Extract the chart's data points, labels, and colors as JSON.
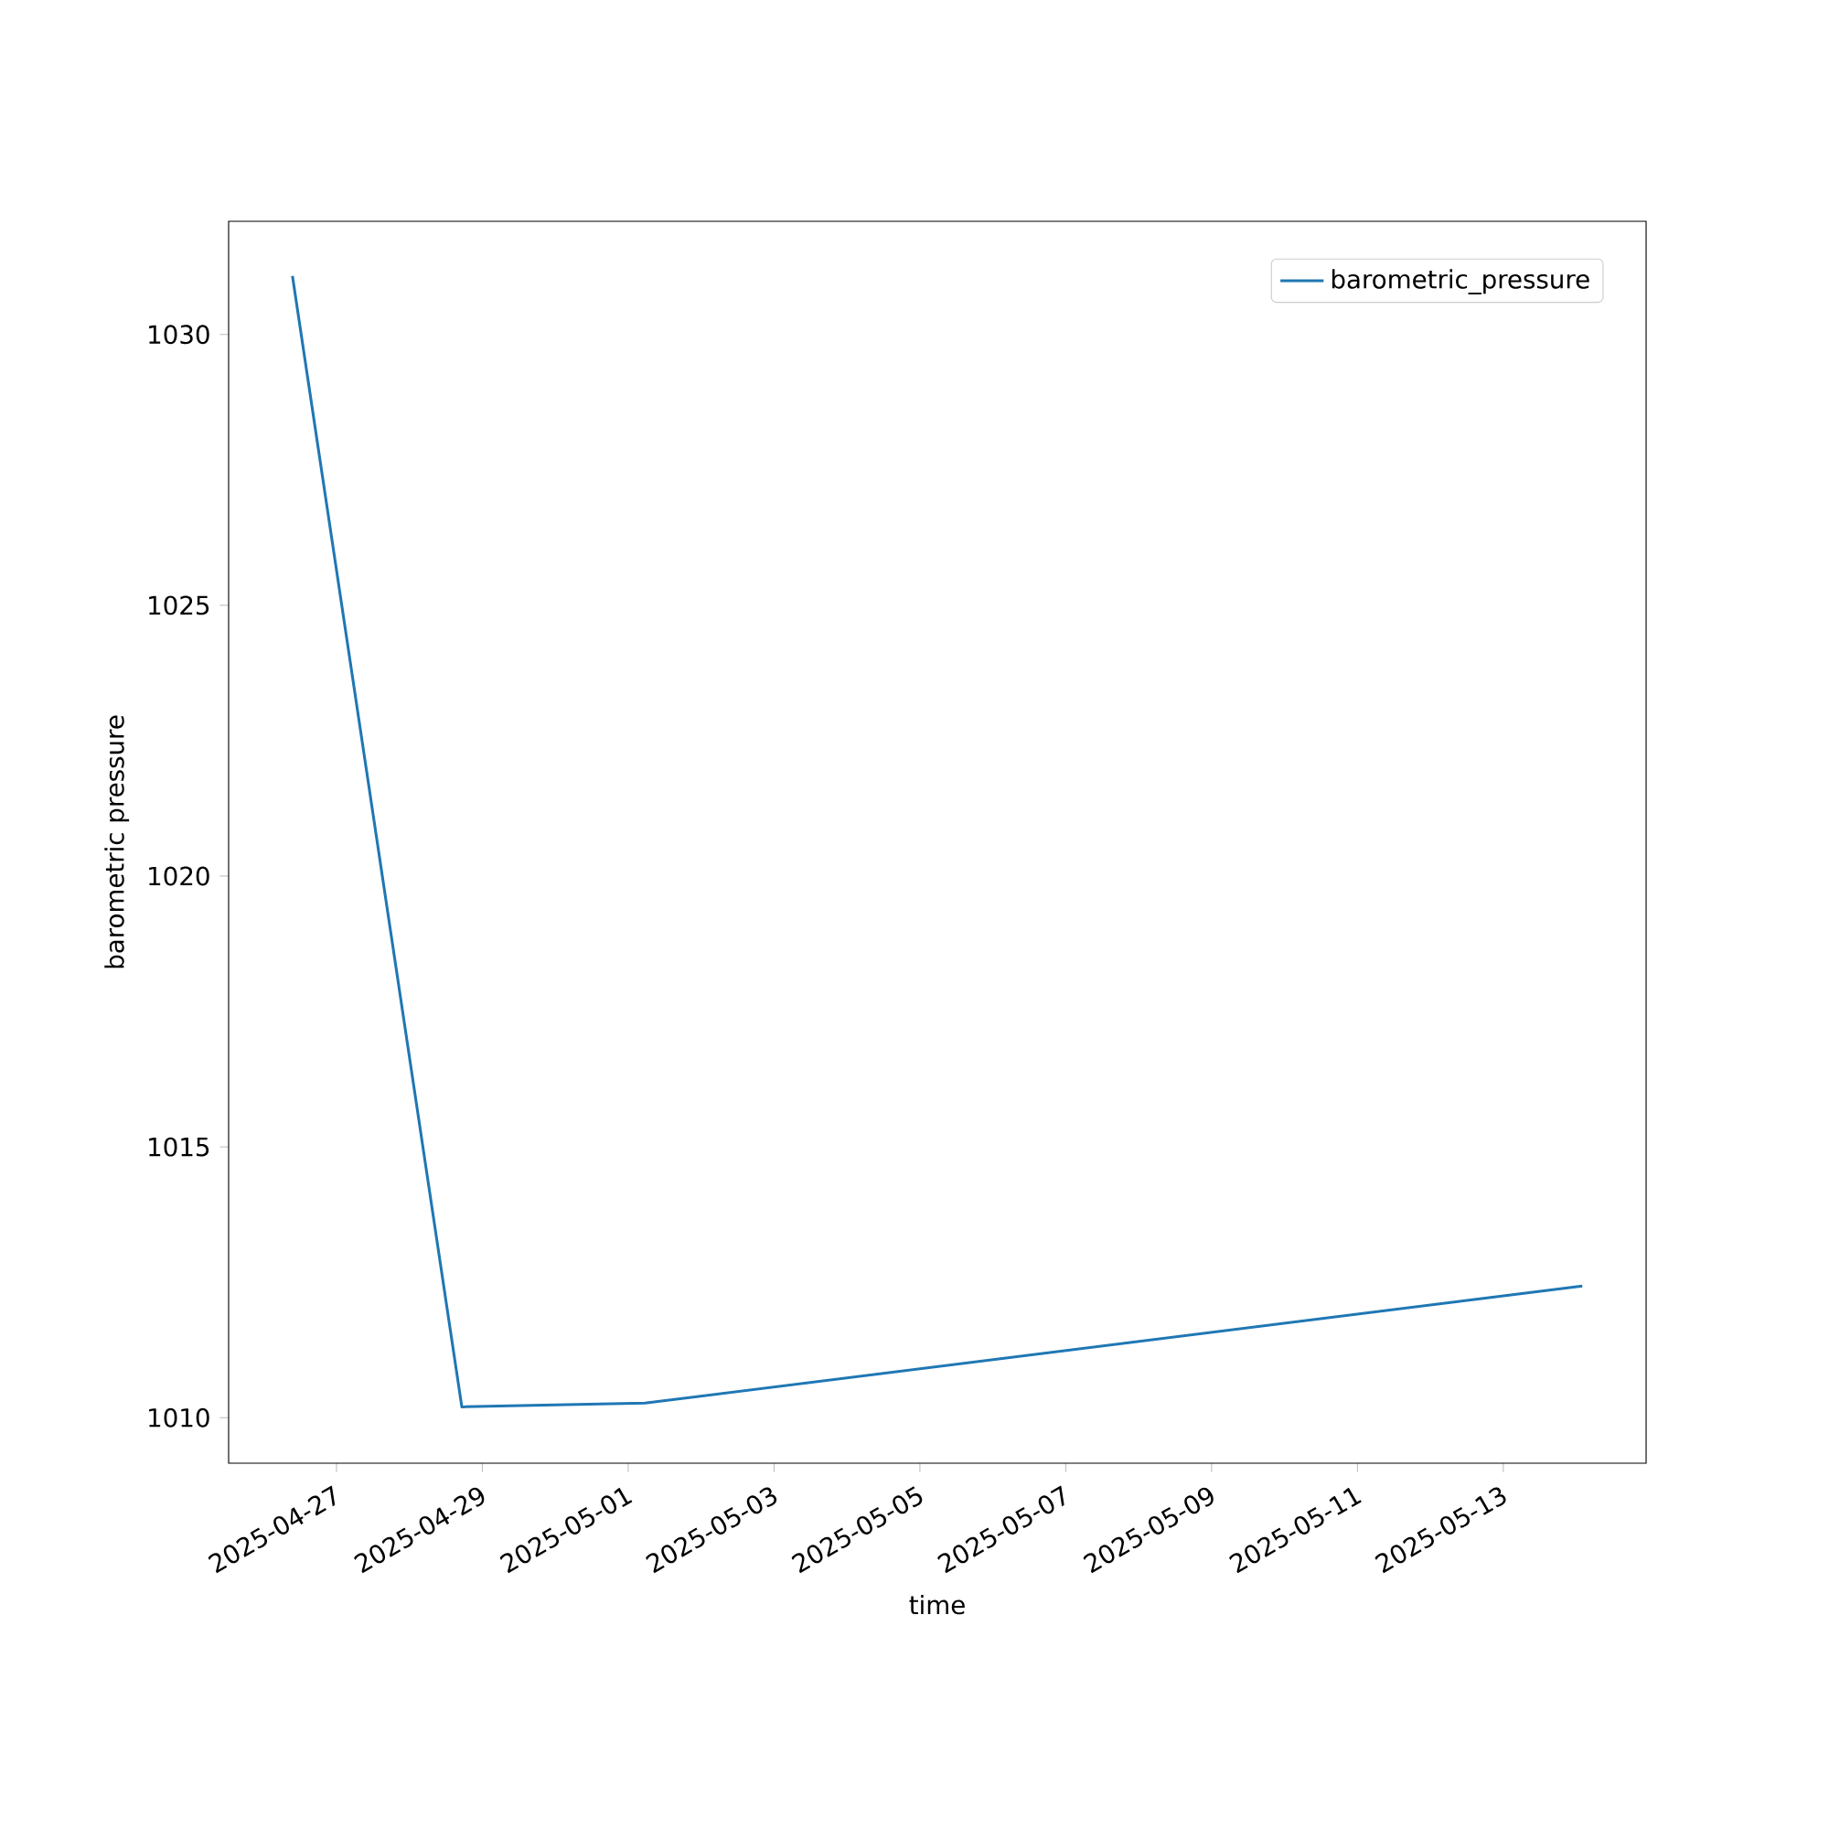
{
  "chart_data": {
    "type": "line",
    "xlabel": "time",
    "ylabel": "barometric pressure",
    "x": [
      "2025-04-26T09:30",
      "2025-04-28T17:15",
      "2025-05-01T05:30",
      "2025-05-14T02:00"
    ],
    "series": [
      {
        "name": "barometric_pressure",
        "color": "#1f77b4",
        "values": [
          1031.08,
          1010.2,
          1010.27,
          1012.43
        ]
      }
    ],
    "xlim": [
      "2025-04-25T12:30",
      "2025-05-14T23:00"
    ],
    "ylim": [
      1009.16,
      1032.09
    ],
    "xticks": [
      "2025-04-27",
      "2025-04-29",
      "2025-05-01",
      "2025-05-03",
      "2025-05-05",
      "2025-05-07",
      "2025-05-09",
      "2025-05-11",
      "2025-05-13"
    ],
    "yticks": [
      1010,
      1015,
      1020,
      1025,
      1030
    ],
    "legend": "top right"
  }
}
